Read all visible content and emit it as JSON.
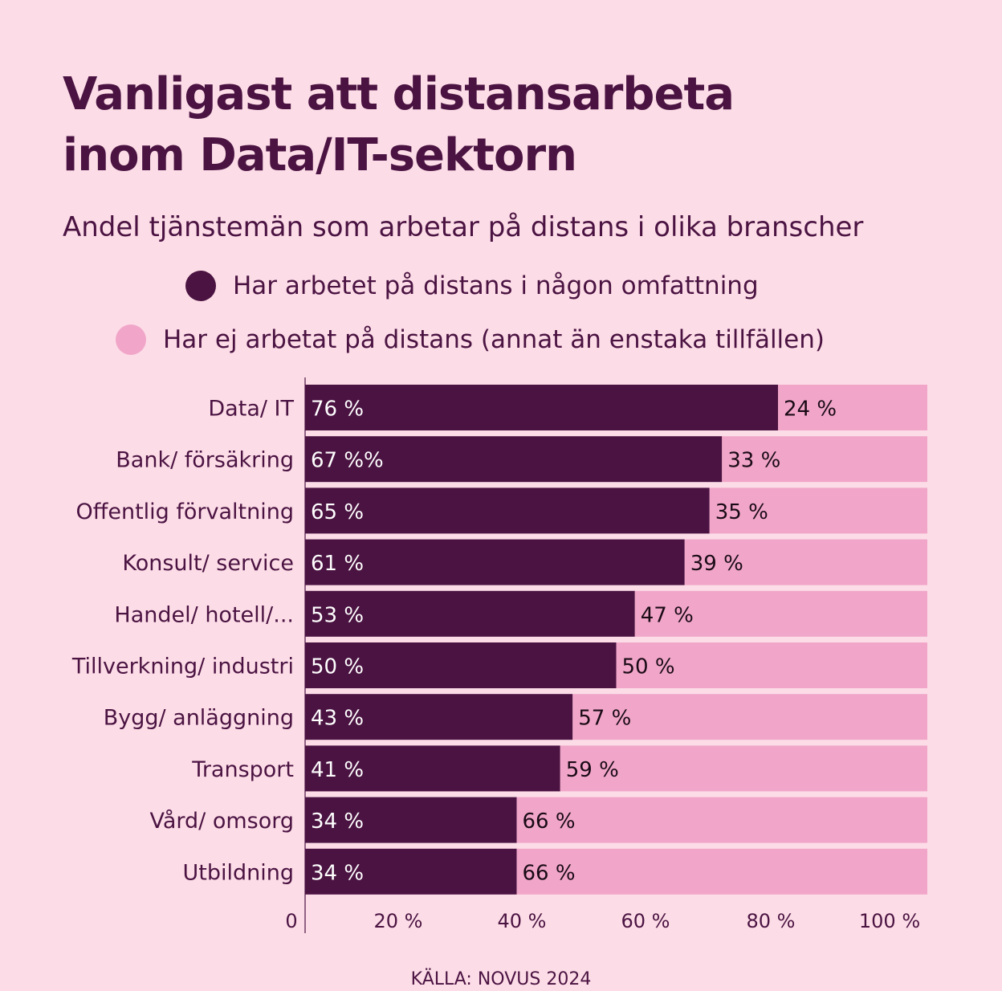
{
  "title_lines": [
    "Vanligast att distansarbeta",
    "inom Data/IT-sektorn"
  ],
  "subtitle": "Andel tjänstemän som arbetar på distans i olika branscher",
  "source": "KÄLLA: NOVUS 2024",
  "colors": {
    "background": "#fcdde7",
    "dark": "#4b1342",
    "light": "#f1a6c9",
    "text": "#4b1342"
  },
  "legend": [
    {
      "label": "Har arbetet på distans i någon omfattning",
      "color": "#4b1342"
    },
    {
      "label": "Har ej arbetat på distans (annat än enstaka tillfällen)",
      "color": "#f1a6c9"
    }
  ],
  "chart_data": {
    "type": "bar",
    "orientation": "horizontal",
    "stacked": true,
    "categories": [
      "Data/ IT",
      "Bank/ försäkring",
      "Offentlig förvaltning",
      "Konsult/ service",
      "Handel/ hotell/...",
      "Tillverkning/ industri",
      "Bygg/ anläggning",
      "Transport",
      "Vård/ omsorg",
      "Utbildning"
    ],
    "series": [
      {
        "name": "Har arbetet på distans i någon omfattning",
        "values": [
          76,
          67,
          65,
          61,
          53,
          50,
          43,
          41,
          34,
          34
        ],
        "labels": [
          "76 %",
          "67 %%",
          "65 %",
          "61 %",
          "53 %",
          "50 %",
          "43 %",
          "41 %",
          "34 %",
          "34 %"
        ]
      },
      {
        "name": "Har ej arbetat på distans (annat än enstaka tillfällen)",
        "values": [
          24,
          33,
          35,
          39,
          47,
          50,
          57,
          59,
          66,
          66
        ],
        "labels": [
          "24 %",
          "33 %",
          "35 %",
          "39 %",
          "47 %",
          "50 %",
          "57 %",
          "59 %",
          "66 %",
          "66 %"
        ]
      }
    ],
    "xlim": [
      0,
      100
    ],
    "xticks": [
      0,
      20,
      40,
      60,
      80,
      100
    ],
    "xtick_labels": [
      "0",
      "20 %",
      "40 %",
      "60 %",
      "80 %",
      "100 %"
    ],
    "legend_position": "top",
    "grid": false
  }
}
